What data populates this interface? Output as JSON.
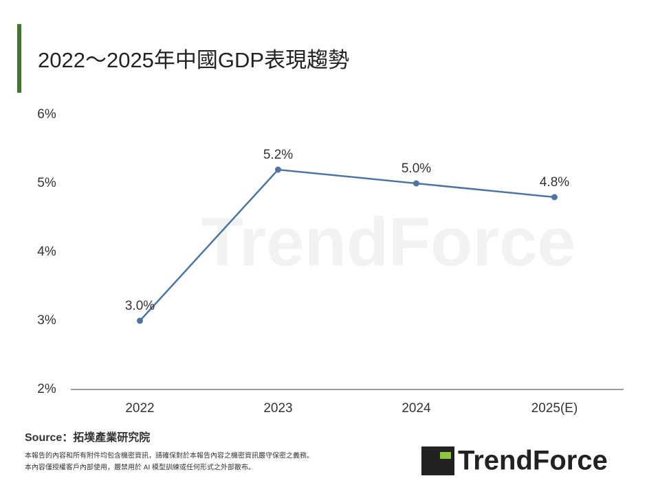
{
  "chart_data": {
    "type": "line",
    "title": "2022～2025年中國GDP表現趨勢",
    "categories": [
      "2022",
      "2023",
      "2024",
      "2025(E)"
    ],
    "series": [
      {
        "name": "GDP",
        "color": "#4e74a0",
        "values": [
          3.0,
          5.2,
          5.0,
          4.8
        ],
        "value_labels": [
          "3.0%",
          "5.2%",
          "5.0%",
          "4.8%"
        ]
      }
    ],
    "ylim": [
      2,
      6
    ],
    "yticks": [
      {
        "value": 2,
        "label": "2%"
      },
      {
        "value": 3,
        "label": "3%"
      },
      {
        "value": 4,
        "label": "4%"
      },
      {
        "value": 5,
        "label": "5%"
      },
      {
        "value": 6,
        "label": "6%"
      }
    ],
    "grid": false
  },
  "footer": {
    "source": "Source：拓墣產業研究院",
    "disclaimer": [
      "本報告的內容和所有附件均包含機密資訊，請確保對於本報告內容之機密資訊嚴守保密之義務。",
      "本內容僅授權客戶內部使用，嚴禁用於 AI 模型訓練或任何形式之外部散布。"
    ],
    "brand": "TrendForce"
  }
}
